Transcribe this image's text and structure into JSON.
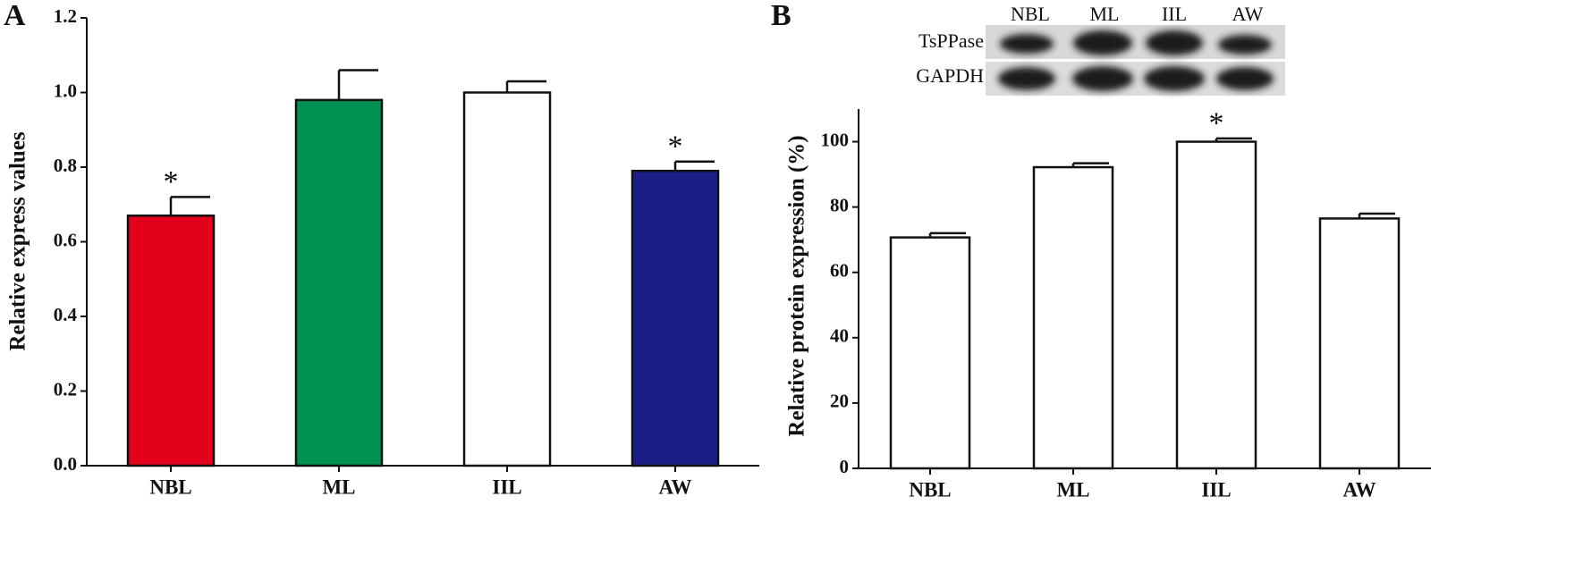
{
  "chart_data": [
    {
      "type": "bar",
      "panel_label": "A",
      "y_label": "Relative express values",
      "categories": [
        "NBL",
        "ML",
        "IIL",
        "AW"
      ],
      "values": [
        0.67,
        0.98,
        1.0,
        0.79
      ],
      "errors": [
        0.05,
        0.08,
        0.03,
        0.025
      ],
      "colors": [
        "#e3001b",
        "#009051",
        "#ffffff",
        "#1b1e87"
      ],
      "significance": [
        "*",
        null,
        null,
        "*"
      ],
      "ylim": [
        0,
        1.2
      ],
      "yticks": [
        {
          "value": 0,
          "label": "0.0"
        },
        0.2,
        0.4,
        0.6,
        0.8,
        {
          "value": 1,
          "label": "1.0"
        },
        1.2
      ]
    },
    {
      "type": "bar",
      "panel_label": "B",
      "y_label": "Relative protein expression (%)",
      "categories": [
        "NBL",
        "ML",
        "IIL",
        "AW"
      ],
      "values": [
        70.7,
        92.2,
        100,
        76.5
      ],
      "errors": [
        1.3,
        1.2,
        1.0,
        1.5
      ],
      "colors": [
        "#ffffff",
        "#ffffff",
        "#ffffff",
        "#ffffff"
      ],
      "significance": [
        null,
        null,
        "*",
        null
      ],
      "ylim": [
        0,
        110
      ],
      "yticks": [
        0,
        20,
        40,
        60,
        80,
        100
      ],
      "blot": {
        "lanes": [
          "NBL",
          "ML",
          "IIL",
          "AW"
        ],
        "rows": [
          "TsPPase",
          "GAPDH"
        ]
      }
    }
  ]
}
